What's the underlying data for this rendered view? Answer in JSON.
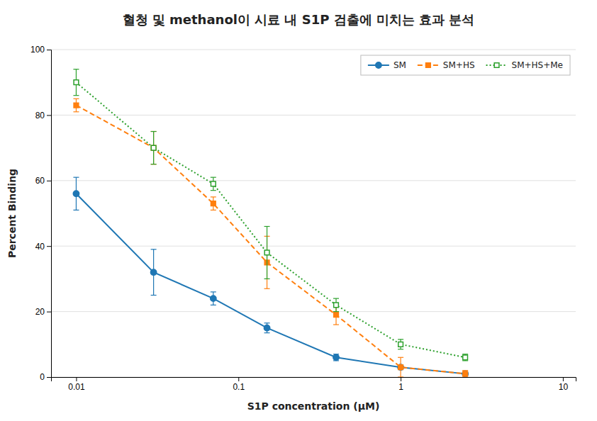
{
  "chart_data": {
    "type": "line",
    "title": "혈청 및 methanol이 시료 내 S1P 검출에 미치는 효과 분석",
    "x_label": "S1P concentration (μM)",
    "y_label": "Percent Binding",
    "log": "x",
    "xlim": [
      0.007,
      12
    ],
    "xticks": [
      0.01,
      0.1,
      1,
      10
    ],
    "ylim": [
      0,
      100
    ],
    "yticks": [
      0,
      20,
      40,
      60,
      80,
      100
    ],
    "grid": true,
    "legend": "top-right",
    "x": [
      0.01,
      0.03,
      0.07,
      0.15,
      0.4,
      1.0,
      2.5
    ],
    "series": [
      {
        "name": "SM",
        "values": [
          56,
          32,
          24,
          15,
          6,
          3,
          1
        ],
        "errors": [
          5,
          7,
          2,
          1.5,
          1,
          0.5,
          0.5
        ],
        "marker": "circle",
        "line_style": "solid"
      },
      {
        "name": "SM+HS",
        "values": [
          83,
          70,
          53,
          35,
          19,
          3,
          1
        ],
        "errors": [
          2,
          5,
          2,
          8,
          3,
          3,
          1
        ],
        "marker": "square",
        "line_style": "dashed"
      },
      {
        "name": "SM+HS+Me",
        "values": [
          90,
          70,
          59,
          38,
          22,
          10,
          6
        ],
        "errors": [
          4,
          5,
          2,
          8,
          2,
          1.5,
          1
        ],
        "marker": "open-square",
        "line_style": "dotted"
      }
    ]
  }
}
